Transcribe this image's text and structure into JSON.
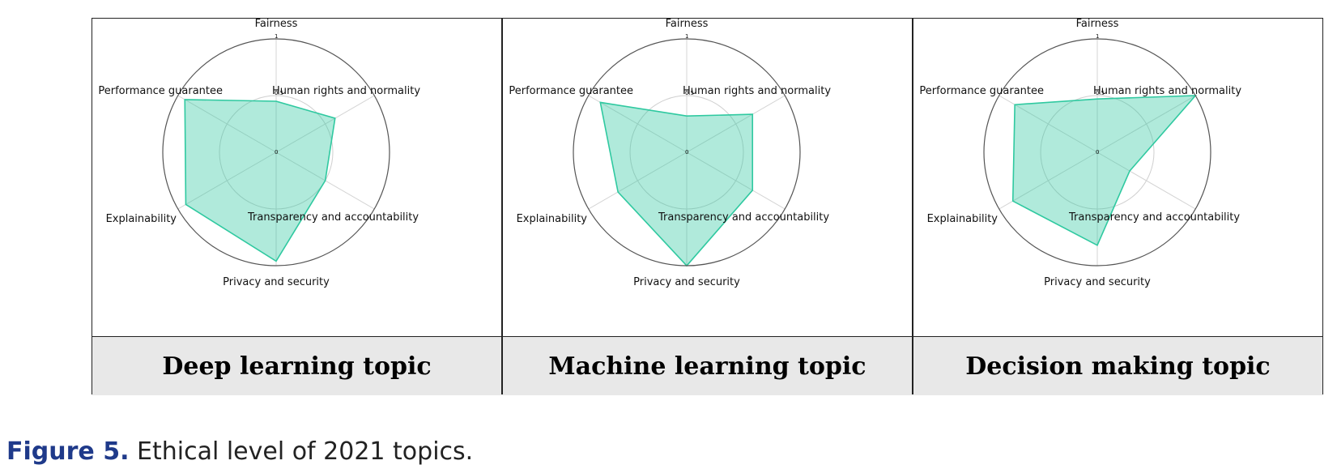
{
  "chart_data": [
    {
      "type": "radar",
      "title": "Deep learning topic",
      "axes": [
        "Fairness",
        "Human rights and normality",
        "Transparency and accountability",
        "Privacy and security",
        "Explainability",
        "Performance guarantee"
      ],
      "ticks": [
        "0",
        "0.5",
        "1"
      ],
      "rlim": [
        0,
        1
      ],
      "grid": true,
      "color": "#2fc9a0",
      "values": [
        0.45,
        0.6,
        0.5,
        0.96,
        0.92,
        0.93
      ]
    },
    {
      "type": "radar",
      "title": "Machine learning topic",
      "axes": [
        "Fairness",
        "Human rights and normality",
        "Transparency and accountability",
        "Privacy and security",
        "Explainability",
        "Performance guarantee"
      ],
      "ticks": [
        "0",
        "0.5",
        "1"
      ],
      "rlim": [
        0,
        1
      ],
      "grid": true,
      "color": "#2fc9a0",
      "values": [
        0.32,
        0.67,
        0.67,
        1.0,
        0.7,
        0.88
      ]
    },
    {
      "type": "radar",
      "title": "Decision making topic",
      "axes": [
        "Fairness",
        "Human rights and normality",
        "Transparency and accountability",
        "Privacy and security",
        "Explainability",
        "Performance guarantee"
      ],
      "ticks": [
        "0",
        "0.5",
        "1"
      ],
      "rlim": [
        0,
        1
      ],
      "grid": true,
      "color": "#2fc9a0",
      "values": [
        0.47,
        1.0,
        0.33,
        0.82,
        0.86,
        0.84
      ]
    }
  ],
  "caption": {
    "figure_number": "Figure 5.",
    "text": " Ethical level of 2021 topics."
  }
}
